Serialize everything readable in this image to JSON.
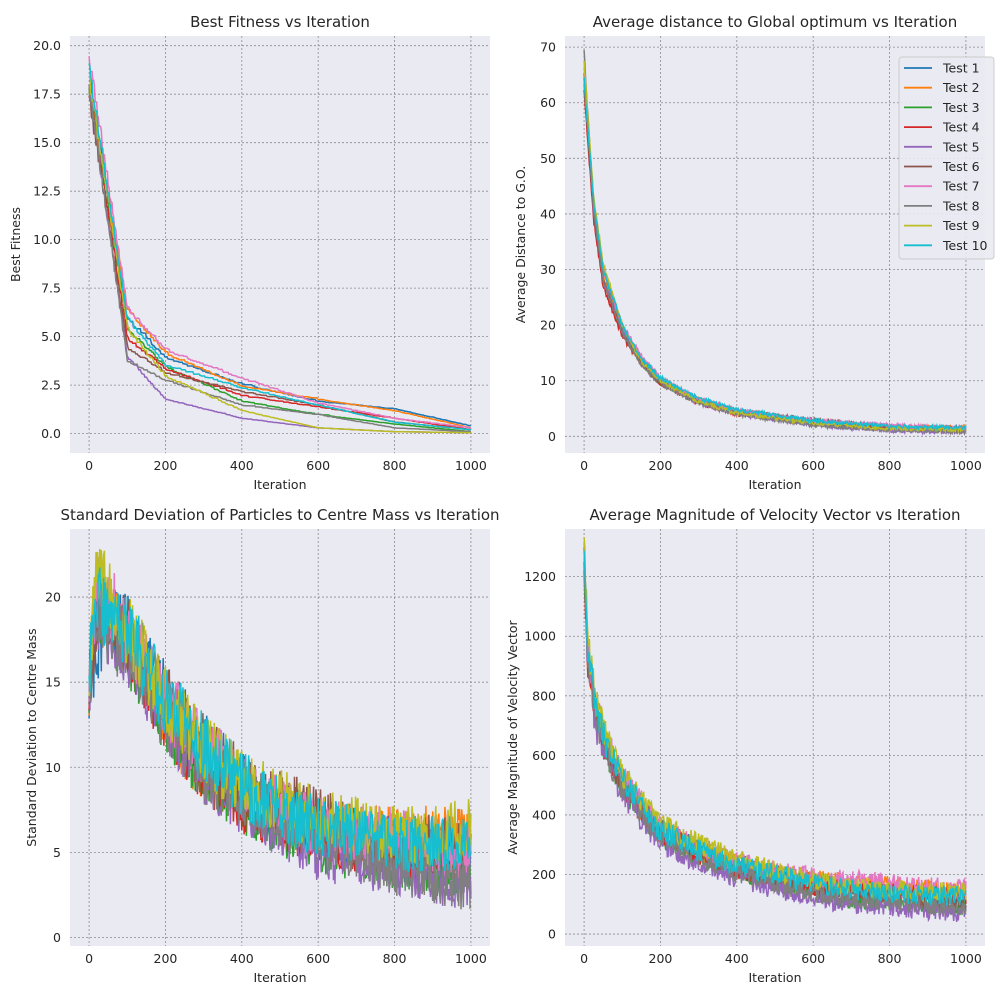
{
  "colors": {
    "axes_bg": "#eaeaf2",
    "grid": "#8c8c8c",
    "series": [
      "#1f77b4",
      "#ff7f0e",
      "#2ca02c",
      "#d62728",
      "#9467bd",
      "#8c564b",
      "#e377c2",
      "#7f7f7f",
      "#bcbd22",
      "#17becf"
    ]
  },
  "legend": {
    "entries": [
      "Test 1",
      "Test 2",
      "Test 3",
      "Test 4",
      "Test 5",
      "Test 6",
      "Test 7",
      "Test 8",
      "Test 9",
      "Test 10"
    ]
  },
  "chart_data": [
    {
      "type": "line",
      "title": "Best Fitness vs Iteration",
      "xlabel": "Iteration",
      "ylabel": "Best Fitness",
      "xlim": [
        -50,
        1050
      ],
      "ylim": [
        -1,
        20.5
      ],
      "xticks": [
        0,
        200,
        400,
        600,
        800,
        1000
      ],
      "xtick_labels": [
        "0",
        "200",
        "400",
        "600",
        "800",
        "1000"
      ],
      "yticks": [
        0,
        2.5,
        5,
        7.5,
        10,
        12.5,
        15,
        17.5,
        20
      ],
      "ytick_labels": [
        "0.0",
        "2.5",
        "5.0",
        "7.5",
        "10.0",
        "12.5",
        "15.0",
        "17.5",
        "20.0"
      ],
      "grid": true,
      "x": [
        0,
        100,
        200,
        400,
        600,
        800,
        1000
      ],
      "series": [
        {
          "name": "Test 1",
          "values": [
            18.5,
            6.0,
            4.0,
            2.6,
            1.7,
            1.3,
            0.4
          ]
        },
        {
          "name": "Test 2",
          "values": [
            18.0,
            6.5,
            4.2,
            2.5,
            1.8,
            1.2,
            0.3
          ]
        },
        {
          "name": "Test 3",
          "values": [
            18.0,
            5.5,
            3.5,
            1.7,
            1.0,
            0.5,
            0.1
          ]
        },
        {
          "name": "Test 4",
          "values": [
            18.0,
            5.0,
            3.4,
            2.0,
            1.4,
            0.8,
            0.2
          ]
        },
        {
          "name": "Test 5",
          "values": [
            18.0,
            4.0,
            1.8,
            0.8,
            0.3,
            0.1,
            0.05
          ]
        },
        {
          "name": "Test 6",
          "values": [
            17.5,
            4.5,
            3.2,
            2.2,
            1.5,
            0.6,
            0.2
          ]
        },
        {
          "name": "Test 7",
          "values": [
            19.5,
            6.5,
            4.4,
            2.9,
            1.6,
            0.8,
            0.3
          ]
        },
        {
          "name": "Test 8",
          "values": [
            18.0,
            3.8,
            2.8,
            1.5,
            1.0,
            0.3,
            0.1
          ]
        },
        {
          "name": "Test 9",
          "values": [
            18.5,
            5.5,
            3.0,
            1.2,
            0.3,
            0.1,
            0.05
          ]
        },
        {
          "name": "Test 10",
          "values": [
            19.0,
            6.0,
            3.6,
            2.4,
            1.5,
            0.6,
            0.2
          ]
        }
      ]
    },
    {
      "type": "line",
      "title": "Average distance to Global optimum vs Iteration",
      "xlabel": "Iteration",
      "ylabel": "Average Distance to G.O.",
      "xlim": [
        -50,
        1050
      ],
      "ylim": [
        -3,
        72
      ],
      "xticks": [
        0,
        200,
        400,
        600,
        800,
        1000
      ],
      "xtick_labels": [
        "0",
        "200",
        "400",
        "600",
        "800",
        "1000"
      ],
      "yticks": [
        0,
        10,
        20,
        30,
        40,
        50,
        60,
        70
      ],
      "ytick_labels": [
        "0",
        "10",
        "20",
        "30",
        "40",
        "50",
        "60",
        "70"
      ],
      "grid": true,
      "legend_loc": "upper-right",
      "x": [
        0,
        25,
        50,
        100,
        150,
        200,
        300,
        400,
        600,
        800,
        1000
      ],
      "series": [
        {
          "name": "Test 1",
          "values": [
            65,
            42,
            30,
            19,
            14,
            10,
            6.5,
            4.5,
            2.5,
            1.5,
            1.5
          ]
        },
        {
          "name": "Test 2",
          "values": [
            63,
            41,
            29,
            19,
            13.5,
            10,
            6.5,
            4.5,
            2.6,
            1.8,
            1.5
          ]
        },
        {
          "name": "Test 3",
          "values": [
            64,
            40,
            28,
            18.5,
            13,
            9.5,
            6.2,
            4.2,
            2.3,
            1.4,
            1.2
          ]
        },
        {
          "name": "Test 4",
          "values": [
            62,
            39,
            27,
            18,
            13,
            9.5,
            6.0,
            4.0,
            2.5,
            1.5,
            1.3
          ]
        },
        {
          "name": "Test 5",
          "values": [
            65,
            40,
            28,
            19,
            14,
            10,
            6.0,
            4.0,
            2.0,
            1.0,
            0.8
          ]
        },
        {
          "name": "Test 6",
          "values": [
            64,
            40,
            28,
            18.5,
            13,
            9.5,
            6.5,
            4.5,
            3.0,
            1.6,
            1.2
          ]
        },
        {
          "name": "Test 7",
          "values": [
            66,
            42,
            30,
            20,
            14.5,
            10.5,
            6.8,
            4.6,
            2.8,
            2.0,
            1.4
          ]
        },
        {
          "name": "Test 8",
          "values": [
            69,
            41,
            28,
            18.5,
            13,
            9.5,
            6.0,
            4.0,
            2.0,
            1.2,
            0.8
          ]
        },
        {
          "name": "Test 9",
          "values": [
            67,
            43,
            31,
            20,
            13.5,
            10,
            6.2,
            4.2,
            2.4,
            1.4,
            1.2
          ]
        },
        {
          "name": "Test 10",
          "values": [
            64,
            42,
            30,
            20,
            14,
            10.5,
            6.8,
            4.8,
            2.8,
            1.8,
            1.6
          ]
        }
      ]
    },
    {
      "type": "line",
      "title": "Standard Deviation of Particles to Centre Mass vs Iteration",
      "xlabel": "Iteration",
      "ylabel": "Standard Deviation to Centre Mass",
      "xlim": [
        -50,
        1050
      ],
      "ylim": [
        -0.5,
        24
      ],
      "xticks": [
        0,
        200,
        400,
        600,
        800,
        1000
      ],
      "xtick_labels": [
        "0",
        "200",
        "400",
        "600",
        "800",
        "1000"
      ],
      "yticks": [
        0,
        5,
        10,
        15,
        20
      ],
      "ytick_labels": [
        "0",
        "5",
        "10",
        "15",
        "20"
      ],
      "grid": true,
      "x": [
        0,
        20,
        50,
        100,
        200,
        300,
        400,
        500,
        600,
        700,
        800,
        900,
        1000
      ],
      "series": [
        {
          "name": "Test 1",
          "values": [
            15,
            17,
            19,
            18,
            14,
            11,
            9,
            7.5,
            6.5,
            5.5,
            5,
            4.5,
            5
          ]
        },
        {
          "name": "Test 2",
          "values": [
            15,
            19,
            19,
            17,
            13,
            10,
            8.5,
            7,
            6.5,
            6,
            6,
            6,
            6
          ]
        },
        {
          "name": "Test 3",
          "values": [
            15,
            19,
            18,
            17,
            13,
            10,
            8,
            6.5,
            5.5,
            5,
            4.5,
            4,
            4
          ]
        },
        {
          "name": "Test 4",
          "values": [
            15,
            20,
            19,
            17,
            13,
            10,
            8,
            7,
            6,
            5.5,
            5,
            5,
            5
          ]
        },
        {
          "name": "Test 5",
          "values": [
            15,
            19,
            18,
            17,
            13,
            10,
            8,
            6.5,
            5,
            4.5,
            4,
            3.5,
            3
          ]
        },
        {
          "name": "Test 6",
          "values": [
            15,
            19,
            19,
            18,
            14,
            11,
            9,
            8,
            7,
            6,
            5.5,
            5.5,
            5
          ]
        },
        {
          "name": "Test 7",
          "values": [
            15,
            21,
            20,
            18,
            14,
            11,
            9,
            7.5,
            6.5,
            6,
            6,
            5.5,
            5
          ]
        },
        {
          "name": "Test 8",
          "values": [
            15,
            19,
            18,
            17,
            13,
            10,
            8.5,
            7,
            6,
            5,
            4,
            3.5,
            3
          ]
        },
        {
          "name": "Test 9",
          "values": [
            15,
            22,
            20,
            18,
            14,
            11,
            9,
            8,
            7,
            6.5,
            6,
            6,
            6.5
          ]
        },
        {
          "name": "Test 10",
          "values": [
            16,
            20,
            19,
            18,
            14,
            11,
            9,
            7.5,
            6.5,
            6,
            5.5,
            5.5,
            5.5
          ]
        }
      ]
    },
    {
      "type": "line",
      "title": "Average Magnitude of Velocity Vector vs Iteration",
      "xlabel": "Iteration",
      "ylabel": "Average Magnitude of Velocity Vector",
      "xlim": [
        -50,
        1050
      ],
      "ylim": [
        -40,
        1360
      ],
      "xticks": [
        0,
        200,
        400,
        600,
        800,
        1000
      ],
      "xtick_labels": [
        "0",
        "200",
        "400",
        "600",
        "800",
        "1000"
      ],
      "yticks": [
        0,
        200,
        400,
        600,
        800,
        1000,
        1200
      ],
      "ytick_labels": [
        "0",
        "200",
        "400",
        "600",
        "800",
        "1000",
        "1200"
      ],
      "grid": true,
      "x": [
        0,
        10,
        30,
        60,
        100,
        150,
        200,
        300,
        400,
        500,
        600,
        700,
        800,
        900,
        1000
      ],
      "series": [
        {
          "name": "Test 1",
          "values": [
            1250,
            950,
            750,
            620,
            520,
            430,
            350,
            280,
            230,
            200,
            170,
            150,
            140,
            130,
            120
          ]
        },
        {
          "name": "Test 2",
          "values": [
            1230,
            920,
            740,
            610,
            510,
            420,
            350,
            280,
            230,
            200,
            180,
            170,
            160,
            150,
            140
          ]
        },
        {
          "name": "Test 3",
          "values": [
            1220,
            900,
            720,
            600,
            490,
            400,
            330,
            260,
            210,
            170,
            140,
            120,
            110,
            100,
            90
          ]
        },
        {
          "name": "Test 4",
          "values": [
            1230,
            910,
            730,
            610,
            500,
            410,
            340,
            270,
            220,
            190,
            160,
            150,
            140,
            130,
            130
          ]
        },
        {
          "name": "Test 5",
          "values": [
            1240,
            900,
            700,
            580,
            470,
            380,
            310,
            240,
            190,
            150,
            120,
            100,
            90,
            80,
            70
          ]
        },
        {
          "name": "Test 6",
          "values": [
            1240,
            920,
            740,
            620,
            510,
            420,
            350,
            280,
            230,
            200,
            170,
            150,
            140,
            120,
            110
          ]
        },
        {
          "name": "Test 7",
          "values": [
            1300,
            960,
            770,
            640,
            530,
            440,
            360,
            290,
            240,
            210,
            190,
            180,
            170,
            160,
            150
          ]
        },
        {
          "name": "Test 8",
          "values": [
            1280,
            930,
            730,
            600,
            490,
            400,
            330,
            260,
            210,
            170,
            140,
            120,
            110,
            100,
            80
          ]
        },
        {
          "name": "Test 9",
          "values": [
            1310,
            980,
            790,
            650,
            540,
            450,
            370,
            300,
            250,
            210,
            180,
            160,
            150,
            140,
            140
          ]
        },
        {
          "name": "Test 10",
          "values": [
            1260,
            950,
            760,
            630,
            520,
            430,
            350,
            280,
            230,
            200,
            170,
            150,
            140,
            130,
            130
          ]
        }
      ]
    }
  ]
}
